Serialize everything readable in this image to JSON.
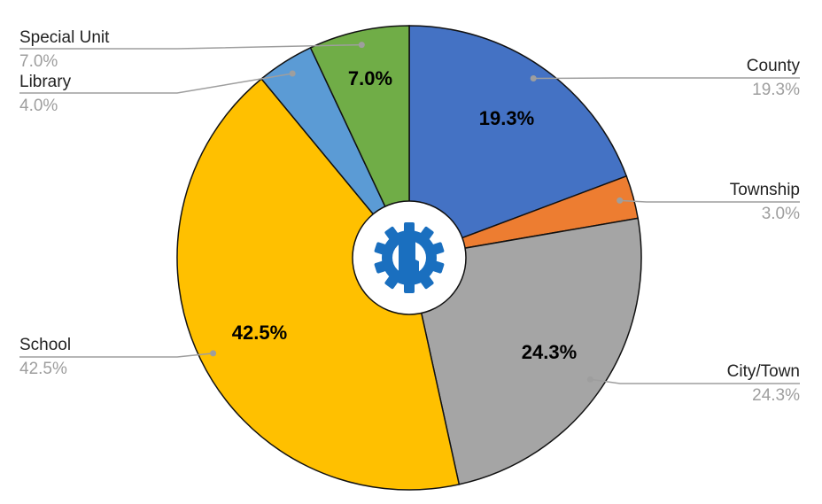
{
  "chart_data": {
    "type": "pie",
    "style": "donut",
    "center_logo": "indiana-gear-logo-icon",
    "slices": [
      {
        "label": "County",
        "value": 19.3,
        "display": "19.3%",
        "color": "#4472c4",
        "inner_label": "19.3%"
      },
      {
        "label": "Township",
        "value": 3.0,
        "display": "3.0%",
        "color": "#ed7d31",
        "inner_label": ""
      },
      {
        "label": "City/Town",
        "value": 24.3,
        "display": "24.3%",
        "color": "#a5a5a5",
        "inner_label": "24.3%"
      },
      {
        "label": "School",
        "value": 42.5,
        "display": "42.5%",
        "color": "#ffc000",
        "inner_label": "42.5%"
      },
      {
        "label": "Library",
        "value": 4.0,
        "display": "4.0%",
        "color": "#5b9bd5",
        "inner_label": ""
      },
      {
        "label": "Special Unit",
        "value": 7.0,
        "display": "7.0%",
        "color": "#70ad47",
        "inner_label": "7.0%"
      }
    ],
    "colors": {
      "logo_blue": "#1a6fbf",
      "leader": "#9e9e9e",
      "outline": "#111111"
    }
  }
}
